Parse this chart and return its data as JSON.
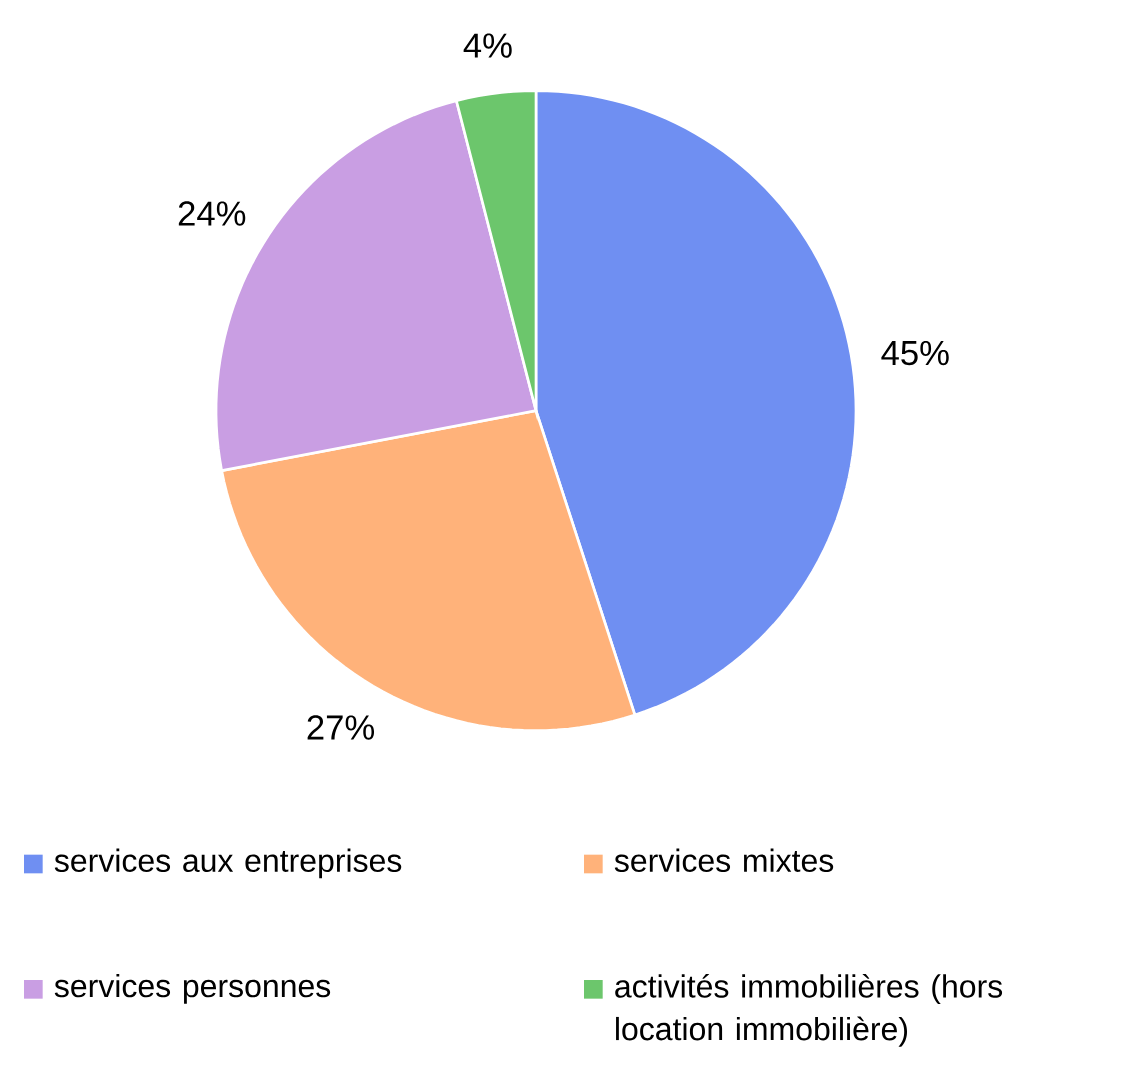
{
  "chart_data": {
    "type": "pie",
    "categories": [
      "services aux entreprises",
      "services mixtes",
      "services personnes",
      "activités immobilières (hors location immobilière)"
    ],
    "values": [
      45,
      27,
      24,
      4
    ],
    "colors": [
      "#6f8ff2",
      "#ffb27a",
      "#c99ee3",
      "#6cc66c"
    ],
    "value_labels": [
      "45%",
      "27%",
      "24%",
      "4%"
    ],
    "legend": "bottom"
  }
}
